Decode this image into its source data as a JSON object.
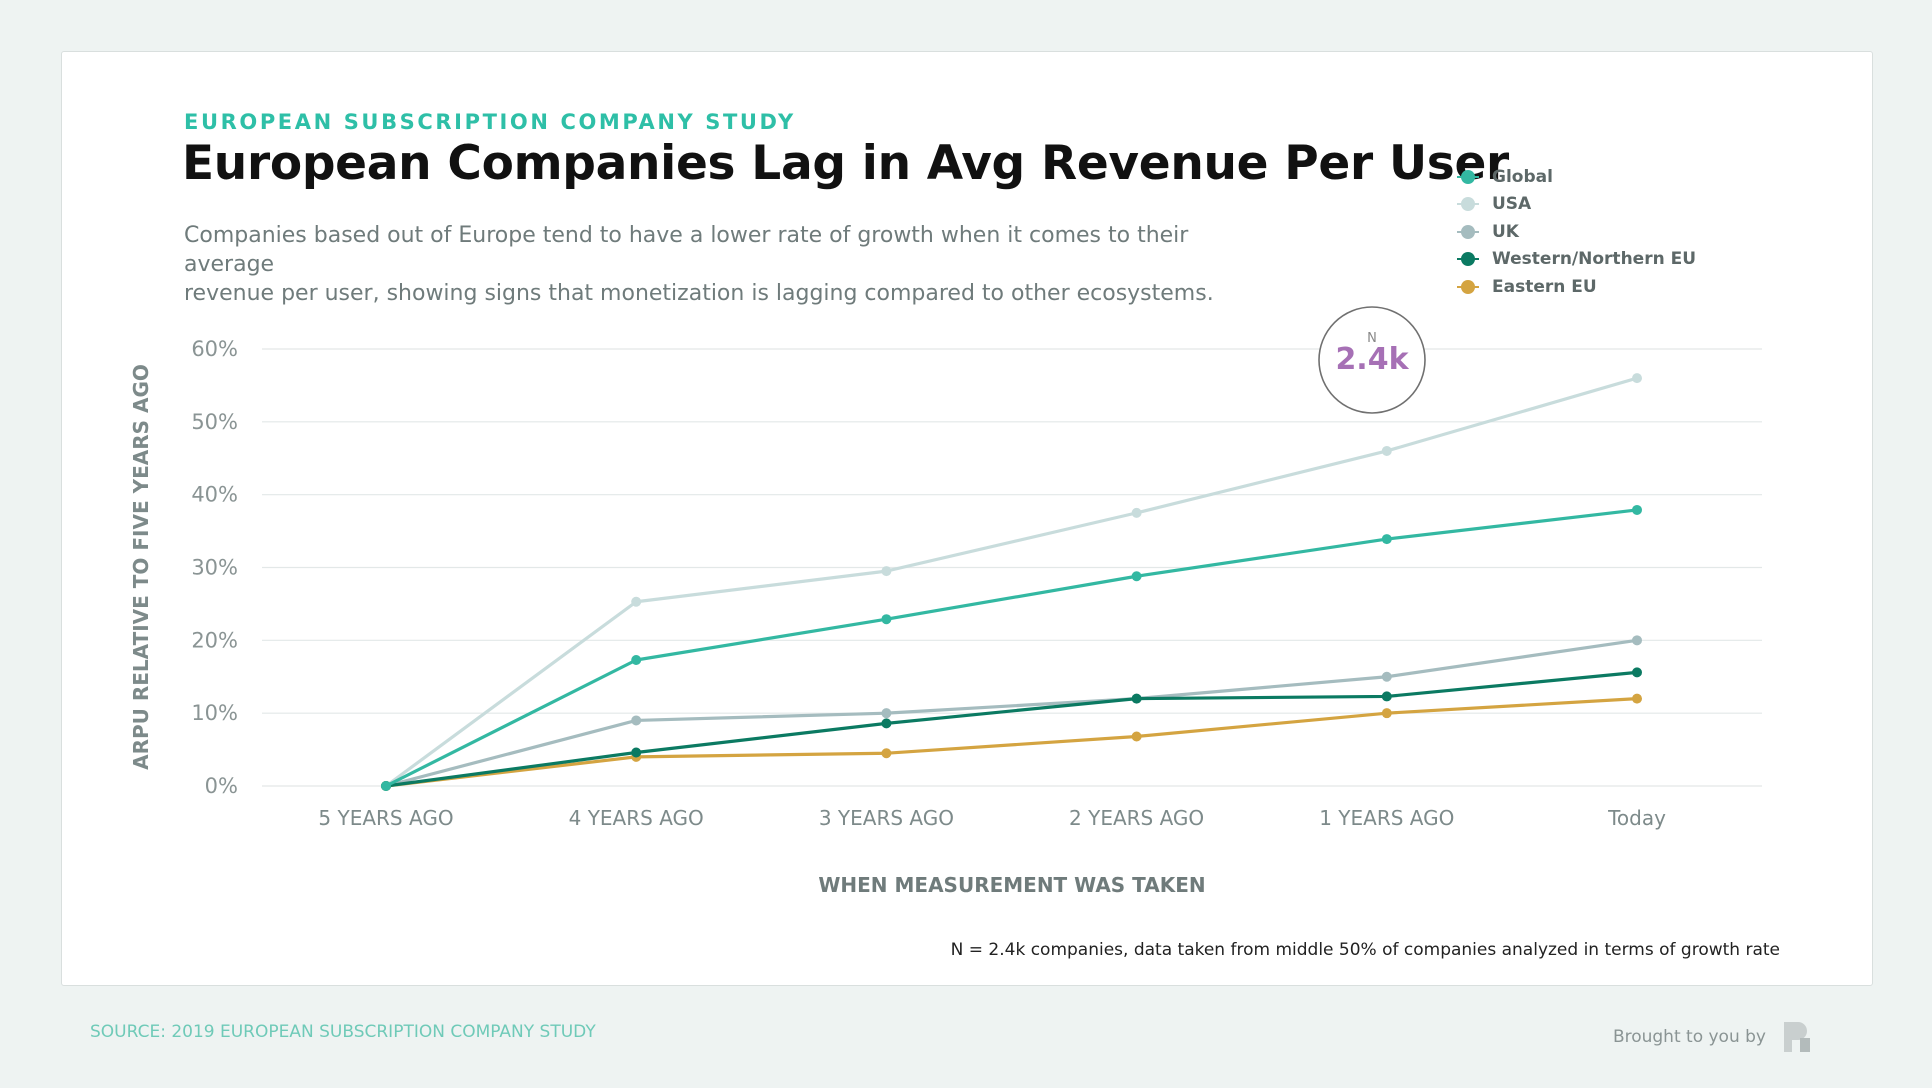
{
  "header": {
    "kicker": "EUROPEAN SUBSCRIPTION COMPANY STUDY",
    "title": "European Companies Lag in Avg Revenue Per User",
    "subtitle_line1": "Companies based out of Europe tend to have a lower rate of growth when it comes to their average",
    "subtitle_line2": "revenue per user, showing signs that monetization is lagging compared to other ecosystems."
  },
  "badge": {
    "label": "N",
    "value": "2.4k",
    "color": "#a670b5"
  },
  "chart_data": {
    "type": "line",
    "title": "European Companies Lag in Avg Revenue Per User",
    "xlabel": "WHEN MEASUREMENT WAS TAKEN",
    "ylabel": "ARPU RELATIVE TO FIVE YEARS AGO",
    "categories": [
      "5 YEARS AGO",
      "4 YEARS AGO",
      "3 YEARS AGO",
      "2 YEARS AGO",
      "1 YEARS AGO",
      "Today"
    ],
    "y_ticks": [
      0,
      10,
      20,
      30,
      40,
      50,
      60
    ],
    "y_tick_labels": [
      "0%",
      "10%",
      "20%",
      "30%",
      "40%",
      "50%",
      "60%"
    ],
    "ylim": [
      0,
      60
    ],
    "grid": true,
    "legend_position": "top-right",
    "series": [
      {
        "name": "USA",
        "color": "#c8dcdc",
        "values": [
          0,
          25.3,
          29.5,
          37.5,
          46,
          56
        ]
      },
      {
        "name": "UK",
        "color": "#a5bcbf",
        "values": [
          0,
          9,
          10,
          12,
          15,
          20
        ]
      },
      {
        "name": "Eastern EU",
        "color": "#d4a441",
        "values": [
          0,
          4,
          4.5,
          6.8,
          10,
          12
        ]
      },
      {
        "name": "Western/Northern EU",
        "color": "#0b7a62",
        "values": [
          0,
          4.6,
          8.6,
          12,
          12.3,
          15.6
        ]
      },
      {
        "name": "Global",
        "color": "#33b8a2",
        "values": [
          0,
          17.3,
          22.9,
          28.8,
          33.9,
          37.9
        ]
      }
    ]
  },
  "legend": [
    {
      "name": "Global",
      "color": "#33b8a2"
    },
    {
      "name": "USA",
      "color": "#c8dcdc"
    },
    {
      "name": "UK",
      "color": "#a5bcbf"
    },
    {
      "name": "Western/Northern EU",
      "color": "#0b7a62"
    },
    {
      "name": "Eastern EU",
      "color": "#d4a441"
    }
  ],
  "footnote": "N = 2.4k companies, data taken from middle 50% of companies analyzed in terms of growth rate",
  "footer": {
    "source": "SOURCE: 2019 EUROPEAN SUBSCRIPTION COMPANY STUDY",
    "credit": "Brought to you by",
    "logo_icon": "profitwell-logo-icon"
  }
}
